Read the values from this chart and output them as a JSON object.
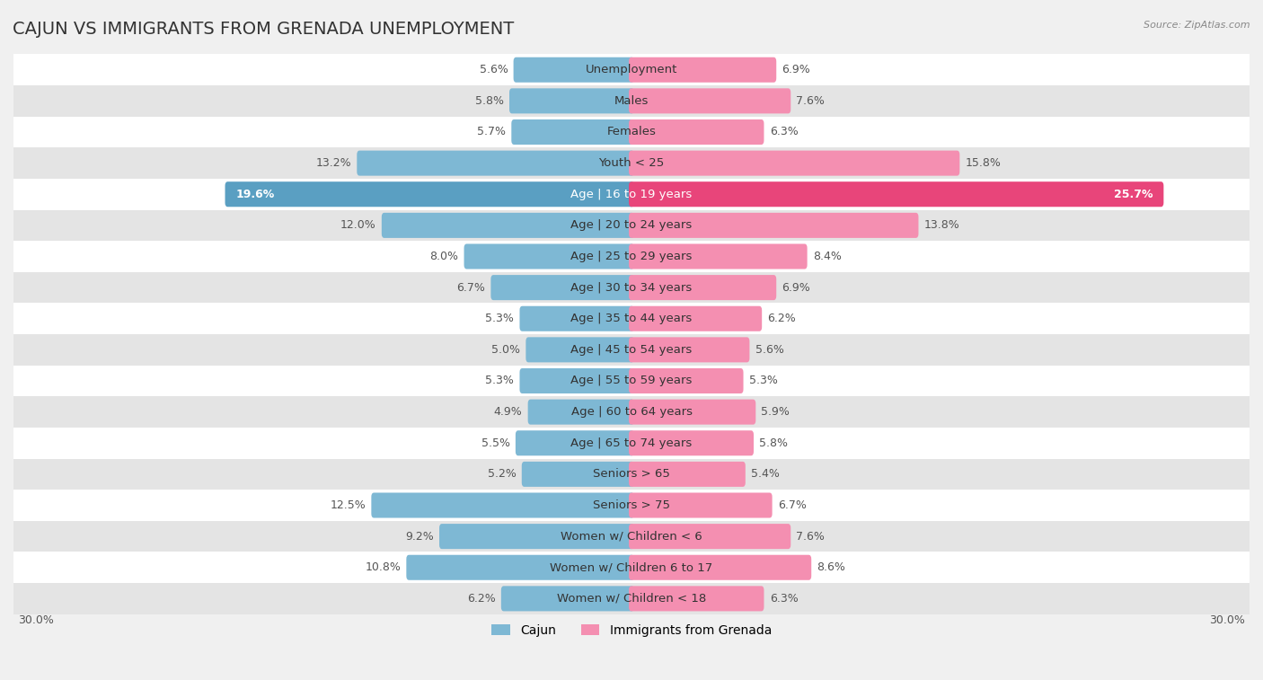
{
  "title": "CAJUN VS IMMIGRANTS FROM GRENADA UNEMPLOYMENT",
  "source": "Source: ZipAtlas.com",
  "categories": [
    "Unemployment",
    "Males",
    "Females",
    "Youth < 25",
    "Age | 16 to 19 years",
    "Age | 20 to 24 years",
    "Age | 25 to 29 years",
    "Age | 30 to 34 years",
    "Age | 35 to 44 years",
    "Age | 45 to 54 years",
    "Age | 55 to 59 years",
    "Age | 60 to 64 years",
    "Age | 65 to 74 years",
    "Seniors > 65",
    "Seniors > 75",
    "Women w/ Children < 6",
    "Women w/ Children 6 to 17",
    "Women w/ Children < 18"
  ],
  "cajun_values": [
    5.6,
    5.8,
    5.7,
    13.2,
    19.6,
    12.0,
    8.0,
    6.7,
    5.3,
    5.0,
    5.3,
    4.9,
    5.5,
    5.2,
    12.5,
    9.2,
    10.8,
    6.2
  ],
  "grenada_values": [
    6.9,
    7.6,
    6.3,
    15.8,
    25.7,
    13.8,
    8.4,
    6.9,
    6.2,
    5.6,
    5.3,
    5.9,
    5.8,
    5.4,
    6.7,
    7.6,
    8.6,
    6.3
  ],
  "cajun_color": "#7eb8d4",
  "grenada_color": "#f48fb1",
  "cajun_highlight_color": "#5a9fc2",
  "grenada_highlight_color": "#e8457a",
  "background_color": "#f0f0f0",
  "row_bg_even": "#ffffff",
  "row_bg_odd": "#e4e4e4",
  "max_value": 30.0,
  "legend_cajun": "Cajun",
  "legend_grenada": "Immigrants from Grenada",
  "title_fontsize": 14,
  "label_fontsize": 9.5,
  "value_fontsize": 9
}
